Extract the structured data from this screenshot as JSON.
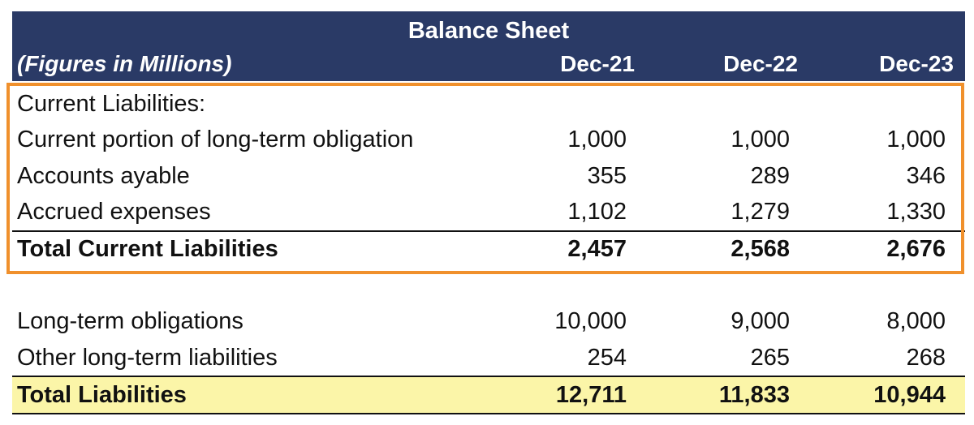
{
  "header": {
    "title": "Balance Sheet",
    "subtitle": "(Figures in Millions)",
    "columns": [
      "Dec-21",
      "Dec-22",
      "Dec-23"
    ]
  },
  "rows": [
    {
      "label": "Current Liabilities:",
      "values": [
        "",
        "",
        ""
      ],
      "bold": false
    },
    {
      "label": "Current portion of long-term obligation",
      "values": [
        "1,000",
        "1,000",
        "1,000"
      ],
      "bold": false
    },
    {
      "label": "Accounts ayable",
      "values": [
        "355",
        "289",
        "346"
      ],
      "bold": false
    },
    {
      "label": "Accrued expenses",
      "values": [
        "1,102",
        "1,279",
        "1,330"
      ],
      "bold": false
    },
    {
      "label": "Total Current Liabilities",
      "values": [
        "2,457",
        "2,568",
        "2,676"
      ],
      "bold": true
    },
    {
      "label": "Long-term obligations",
      "values": [
        "10,000",
        "9,000",
        "8,000"
      ],
      "bold": false
    },
    {
      "label": "Other long-term liabilities",
      "values": [
        "254",
        "265",
        "268"
      ],
      "bold": false
    },
    {
      "label": "Total Liabilities",
      "values": [
        "12,711",
        "11,833",
        "10,944"
      ],
      "bold": true
    }
  ],
  "colors": {
    "header_bg": "#2a3a66",
    "highlight_box": "#f0902c",
    "total_fill": "#fbf5a8"
  }
}
